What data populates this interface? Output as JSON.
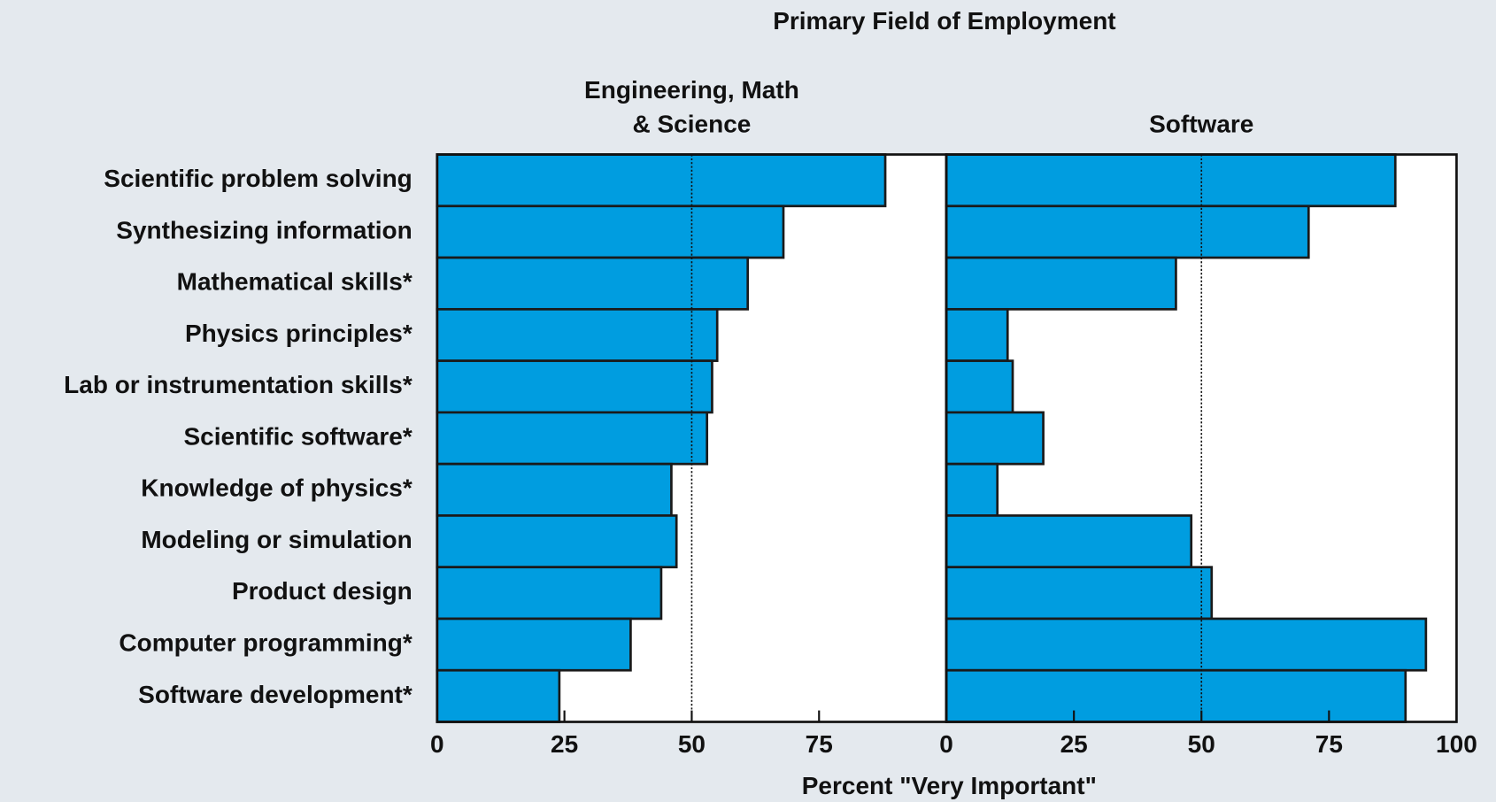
{
  "title": "Primary Field of Employment",
  "xlabel": "Percent \"Very Important\"",
  "chart_data": [
    {
      "type": "bar",
      "orientation": "horizontal",
      "title": "Engineering, Math & Science",
      "categories": [
        "Scientific problem solving",
        "Synthesizing information",
        "Mathematical skills*",
        "Physics principles*",
        "Lab or instrumentation skills*",
        "Scientific software*",
        "Knowledge of physics*",
        "Modeling or simulation",
        "Product design",
        "Computer programming*",
        "Software development*"
      ],
      "values": [
        88,
        68,
        61,
        55,
        54,
        53,
        46,
        47,
        44,
        38,
        24
      ],
      "color": "#009de0",
      "xlim": [
        0,
        100
      ],
      "xticks": [
        0,
        25,
        50,
        75
      ],
      "refline": 50
    },
    {
      "type": "bar",
      "orientation": "horizontal",
      "title": "Software",
      "values": [
        88,
        71,
        45,
        12,
        13,
        19,
        10,
        48,
        52,
        94,
        90
      ],
      "color": "#009de0",
      "xlim": [
        0,
        100
      ],
      "xticks": [
        0,
        25,
        50,
        75,
        100
      ],
      "refline": 50
    }
  ]
}
